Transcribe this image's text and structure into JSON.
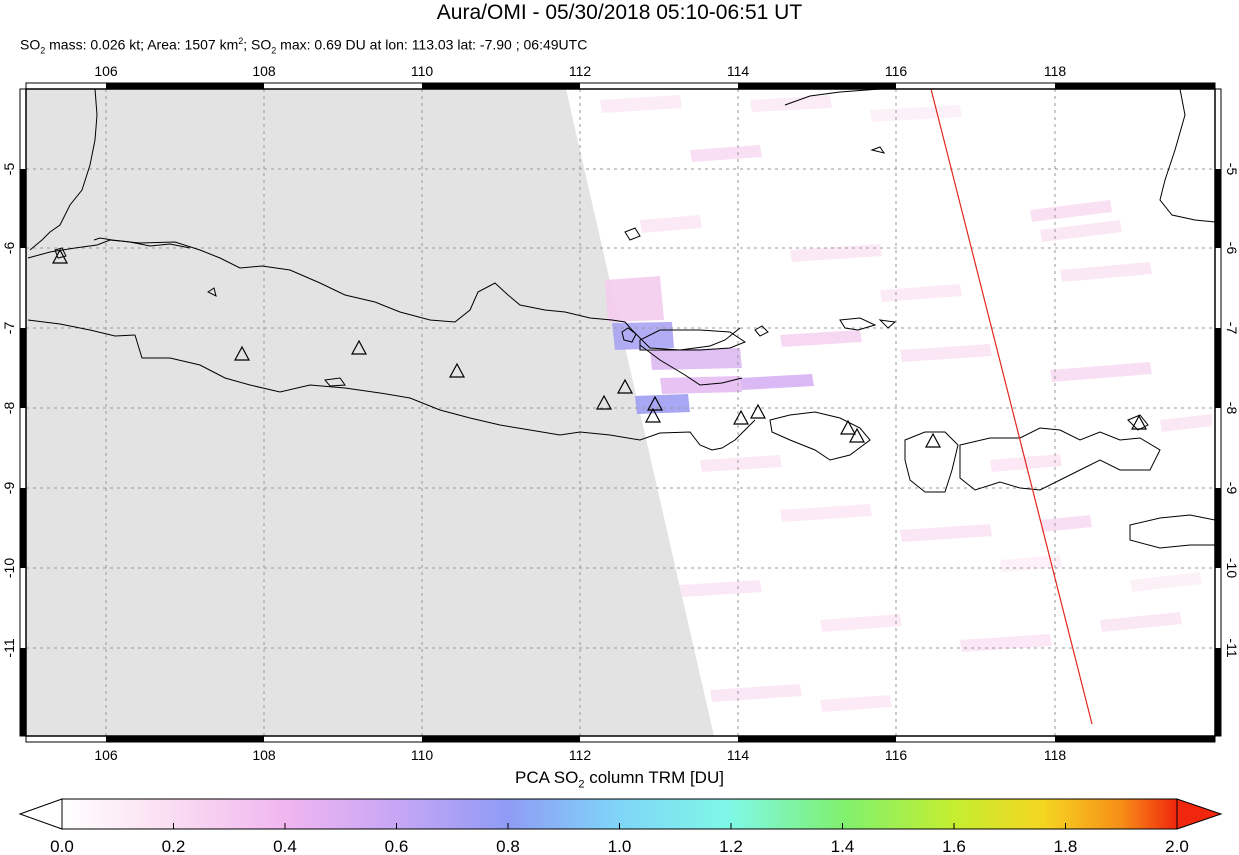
{
  "header": {
    "title": "Aura/OMI - 05/30/2018 05:10-06:51 UT",
    "subtitle_parts": {
      "a": "SO",
      "a_sub": "2",
      "b": " mass: 0.026 kt; Area: 1507 km",
      "b_sup": "2",
      "c": "; SO",
      "c_sub": "2",
      "d": " max: 0.69 DU at lon: 113.03 lat: -7.90 ; 06:49UTC"
    }
  },
  "map": {
    "lon_ticks": [
      "106",
      "108",
      "110",
      "112",
      "114",
      "116",
      "118"
    ],
    "lat_ticks": [
      "-5",
      "-6",
      "-7",
      "-8",
      "-9",
      "-10",
      "-11"
    ],
    "lon_range": [
      105,
      120
    ],
    "lat_range": [
      -12,
      -4
    ],
    "no_data_color": "#e3e3e3",
    "coastline_color": "#000000",
    "orbit_line_color": "#e0281e",
    "volcano_marker": "triangle"
  },
  "colorbar": {
    "title_a": "PCA SO",
    "title_sub": "2",
    "title_b": " column TRM [DU]",
    "tick_labels": [
      "0.0",
      "0.2",
      "0.4",
      "0.6",
      "0.8",
      "1.0",
      "1.2",
      "1.4",
      "1.6",
      "1.8",
      "2.0"
    ],
    "colors": [
      "#ffffff",
      "#fbe0f2",
      "#f0b6f0",
      "#c7a6f5",
      "#8f9cf5",
      "#7fd6f8",
      "#7ff8e6",
      "#7ff06f",
      "#c5ee30",
      "#f5d621",
      "#f78e17",
      "#f0260d"
    ]
  }
}
